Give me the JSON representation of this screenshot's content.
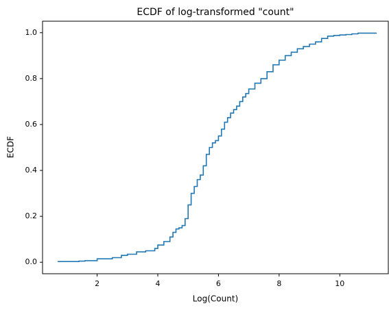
{
  "chart_data": {
    "type": "line",
    "title": "ECDF of log-transformed \"count\"",
    "xlabel": "Log(Count)",
    "ylabel": "ECDF",
    "xlim": [
      0.2,
      11.6
    ],
    "ylim": [
      -0.05,
      1.05
    ],
    "x_ticks": [
      2,
      4,
      6,
      8,
      10
    ],
    "x_tick_labels": [
      "2",
      "4",
      "6",
      "8",
      "10"
    ],
    "y_ticks": [
      0.0,
      0.2,
      0.4,
      0.6,
      0.8,
      1.0
    ],
    "y_tick_labels": [
      "0.0",
      "0.2",
      "0.4",
      "0.6",
      "0.8",
      "1.0"
    ],
    "grid": false,
    "line_color": "#1f77b4",
    "series": [
      {
        "x": [
          0.7,
          1.4,
          1.6,
          2.0,
          2.5,
          2.8,
          3.0,
          3.3,
          3.6,
          3.9,
          4.0,
          4.2,
          4.4,
          4.5,
          4.6,
          4.7,
          4.8,
          4.9,
          5.0,
          5.1,
          5.2,
          5.3,
          5.4,
          5.5,
          5.6,
          5.7,
          5.8,
          5.9,
          6.0,
          6.1,
          6.2,
          6.3,
          6.4,
          6.5,
          6.6,
          6.7,
          6.8,
          6.9,
          7.0,
          7.2,
          7.4,
          7.6,
          7.8,
          8.0,
          8.2,
          8.4,
          8.6,
          8.8,
          9.0,
          9.2,
          9.4,
          9.6,
          9.8,
          10.0,
          10.2,
          10.4,
          10.6,
          11.2
        ],
        "y": [
          0.003,
          0.005,
          0.007,
          0.015,
          0.02,
          0.03,
          0.035,
          0.045,
          0.05,
          0.06,
          0.075,
          0.09,
          0.11,
          0.13,
          0.145,
          0.15,
          0.16,
          0.19,
          0.25,
          0.3,
          0.33,
          0.36,
          0.38,
          0.42,
          0.47,
          0.5,
          0.52,
          0.53,
          0.55,
          0.58,
          0.61,
          0.63,
          0.65,
          0.665,
          0.68,
          0.7,
          0.72,
          0.735,
          0.755,
          0.78,
          0.8,
          0.83,
          0.86,
          0.88,
          0.9,
          0.915,
          0.93,
          0.94,
          0.95,
          0.96,
          0.975,
          0.985,
          0.988,
          0.99,
          0.992,
          0.995,
          0.998,
          1.0
        ]
      }
    ]
  }
}
